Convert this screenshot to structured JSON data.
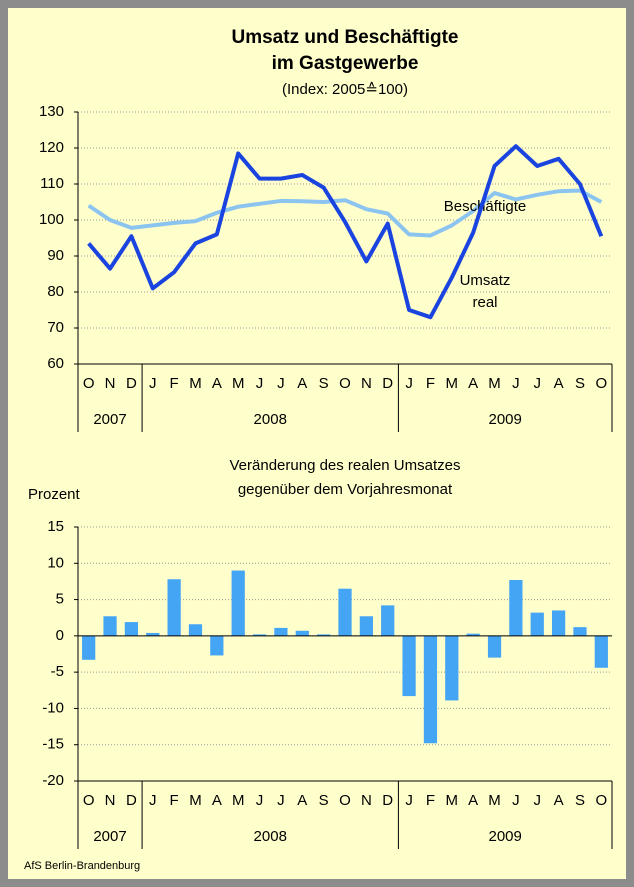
{
  "chart_data": [
    {
      "type": "line",
      "title": [
        "Umsatz und Beschäftigte",
        "im Gastgewerbe"
      ],
      "subtitle": "(Index: 2005≙100)",
      "categories": [
        "O",
        "N",
        "D",
        "J",
        "F",
        "M",
        "A",
        "M",
        "J",
        "J",
        "A",
        "S",
        "O",
        "N",
        "D",
        "J",
        "F",
        "M",
        "A",
        "M",
        "J",
        "J",
        "A",
        "S",
        "O"
      ],
      "category_years": [
        "2007",
        "2007",
        "2007",
        "2008",
        "2008",
        "2008",
        "2008",
        "2008",
        "2008",
        "2008",
        "2008",
        "2008",
        "2008",
        "2008",
        "2008",
        "2009",
        "2009",
        "2009",
        "2009",
        "2009",
        "2009",
        "2009",
        "2009",
        "2009",
        "2009"
      ],
      "series": [
        {
          "name": "Beschäftigte",
          "color": "#8cc4f0",
          "values": [
            104,
            100,
            97.8,
            98.5,
            99.2,
            99.7,
            102,
            103.7,
            104.5,
            105.3,
            105.2,
            105,
            105.5,
            103,
            101.8,
            96,
            95.7,
            98.5,
            102.5,
            107.5,
            105.7,
            107,
            108,
            108.2,
            105
          ]
        },
        {
          "name": "Umsatz real",
          "color": "#1a44e0",
          "values": [
            93.5,
            86.5,
            95.5,
            81,
            85.5,
            93.5,
            96,
            118.5,
            111.5,
            111.5,
            112.5,
            109,
            99.5,
            88.5,
            99,
            75,
            73,
            84,
            96.5,
            115,
            120.5,
            115,
            117,
            110,
            95.5
          ]
        }
      ],
      "ylim": [
        60,
        130
      ],
      "yticks": [
        60,
        70,
        80,
        90,
        100,
        110,
        120,
        130
      ],
      "grid": true
    },
    {
      "type": "bar",
      "title": [
        "Veränderung des realen Umsatzes",
        "gegenüber dem Vorjahresmonat"
      ],
      "y_label": "Prozent",
      "categories": [
        "O",
        "N",
        "D",
        "J",
        "F",
        "M",
        "A",
        "M",
        "J",
        "J",
        "A",
        "S",
        "O",
        "N",
        "D",
        "J",
        "F",
        "M",
        "A",
        "M",
        "J",
        "J",
        "A",
        "S",
        "O"
      ],
      "category_years": [
        "2007",
        "2007",
        "2007",
        "2008",
        "2008",
        "2008",
        "2008",
        "2008",
        "2008",
        "2008",
        "2008",
        "2008",
        "2008",
        "2008",
        "2008",
        "2009",
        "2009",
        "2009",
        "2009",
        "2009",
        "2009",
        "2009",
        "2009",
        "2009",
        "2009"
      ],
      "values": [
        -3.3,
        2.7,
        1.9,
        0.4,
        7.8,
        1.6,
        -2.7,
        9,
        0.2,
        1.1,
        0.7,
        0.2,
        6.5,
        2.7,
        4.2,
        -8.3,
        -14.8,
        -8.9,
        0.3,
        -3,
        7.7,
        3.2,
        3.5,
        1.2,
        -4.4
      ],
      "color": "#45a5f5",
      "ylim": [
        -20,
        15
      ],
      "yticks": [
        -20,
        -15,
        -10,
        -5,
        0,
        5,
        10,
        15
      ],
      "grid": true
    }
  ],
  "footer": "AfS Berlin-Brandenburg"
}
